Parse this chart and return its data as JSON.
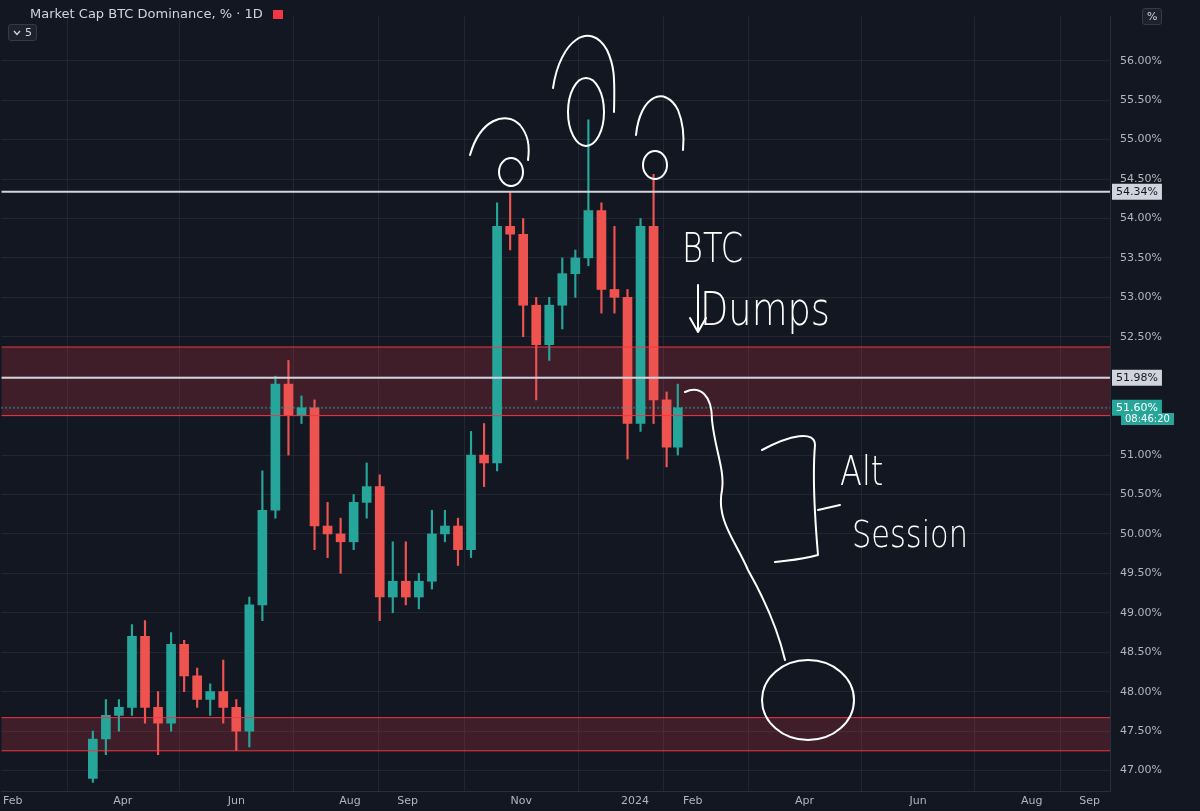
{
  "chart_data": {
    "type": "candlestick",
    "title": "Market Cap BTC Dominance, % · 1D",
    "x": [
      "2023-03-16",
      "2023-03-23",
      "2023-03-30",
      "2023-04-06",
      "2023-04-13",
      "2023-04-20",
      "2023-04-27",
      "2023-05-04",
      "2023-05-11",
      "2023-05-18",
      "2023-05-25",
      "2023-06-01",
      "2023-06-08",
      "2023-06-15",
      "2023-06-22",
      "2023-06-29",
      "2023-07-06",
      "2023-07-13",
      "2023-07-20",
      "2023-07-27",
      "2023-08-03",
      "2023-08-10",
      "2023-08-17",
      "2023-08-24",
      "2023-08-31",
      "2023-09-07",
      "2023-09-14",
      "2023-09-21",
      "2023-09-28",
      "2023-10-05",
      "2023-10-12",
      "2023-10-19",
      "2023-10-26",
      "2023-11-02",
      "2023-11-09",
      "2023-11-16",
      "2023-11-23",
      "2023-11-30",
      "2023-12-07",
      "2023-12-14",
      "2023-12-21",
      "2023-12-28",
      "2024-01-04",
      "2024-01-11",
      "2024-01-18",
      "2024-01-24"
    ],
    "ohlc": [
      [
        46.9,
        47.5,
        46.85,
        47.4
      ],
      [
        47.4,
        47.9,
        47.2,
        47.7
      ],
      [
        47.7,
        47.9,
        47.5,
        47.8
      ],
      [
        47.8,
        48.85,
        47.7,
        48.7
      ],
      [
        48.7,
        48.9,
        47.6,
        47.8
      ],
      [
        47.8,
        48.0,
        47.2,
        47.6
      ],
      [
        47.6,
        48.75,
        47.5,
        48.6
      ],
      [
        48.6,
        48.65,
        48.0,
        48.2
      ],
      [
        48.2,
        48.3,
        47.8,
        47.9
      ],
      [
        47.9,
        48.1,
        47.7,
        48.0
      ],
      [
        48.0,
        48.4,
        47.6,
        47.8
      ],
      [
        47.8,
        47.9,
        47.25,
        47.5
      ],
      [
        47.5,
        49.2,
        47.3,
        49.1
      ],
      [
        49.1,
        50.8,
        48.9,
        50.3
      ],
      [
        50.3,
        52.0,
        50.2,
        51.9
      ],
      [
        51.9,
        52.2,
        51.0,
        51.5
      ],
      [
        51.5,
        51.75,
        51.4,
        51.6
      ],
      [
        51.6,
        51.7,
        49.8,
        50.1
      ],
      [
        50.1,
        50.4,
        49.7,
        50.0
      ],
      [
        50.0,
        50.2,
        49.5,
        49.9
      ],
      [
        49.9,
        50.5,
        49.8,
        50.4
      ],
      [
        50.4,
        50.9,
        50.2,
        50.6
      ],
      [
        50.6,
        50.75,
        48.9,
        49.2
      ],
      [
        49.2,
        49.9,
        49.0,
        49.4
      ],
      [
        49.4,
        49.9,
        49.1,
        49.2
      ],
      [
        49.2,
        49.5,
        49.05,
        49.4
      ],
      [
        49.4,
        50.3,
        49.3,
        50.0
      ],
      [
        50.0,
        50.3,
        49.9,
        50.1
      ],
      [
        50.1,
        50.2,
        49.6,
        49.8
      ],
      [
        49.8,
        51.3,
        49.7,
        51.0
      ],
      [
        51.0,
        51.4,
        50.6,
        50.9
      ],
      [
        50.9,
        54.2,
        50.8,
        53.9
      ],
      [
        53.9,
        54.34,
        53.6,
        53.8
      ],
      [
        53.8,
        54.0,
        52.5,
        52.9
      ],
      [
        52.9,
        53.0,
        51.7,
        52.4
      ],
      [
        52.4,
        53.0,
        52.2,
        52.9
      ],
      [
        52.9,
        53.5,
        52.6,
        53.3
      ],
      [
        53.3,
        53.6,
        53.0,
        53.5
      ],
      [
        53.5,
        55.25,
        53.4,
        54.1
      ],
      [
        54.1,
        54.2,
        52.8,
        53.1
      ],
      [
        53.1,
        53.9,
        52.8,
        53.0
      ],
      [
        53.0,
        53.1,
        50.95,
        51.4
      ],
      [
        51.4,
        54.0,
        51.3,
        53.9
      ],
      [
        53.9,
        54.56,
        51.4,
        51.7
      ],
      [
        51.7,
        51.8,
        50.85,
        51.1
      ],
      [
        51.1,
        51.9,
        51.0,
        51.6
      ]
    ],
    "colors": [
      "#26a69a",
      "#26a69a",
      "#26a69a",
      "#26a69a",
      "#ef5350",
      "#ef5350",
      "#26a69a",
      "#ef5350",
      "#ef5350",
      "#26a69a",
      "#ef5350",
      "#ef5350",
      "#26a69a",
      "#26a69a",
      "#26a69a",
      "#ef5350",
      "#26a69a",
      "#ef5350",
      "#ef5350",
      "#ef5350",
      "#26a69a",
      "#26a69a",
      "#ef5350",
      "#26a69a",
      "#ef5350",
      "#26a69a",
      "#26a69a",
      "#26a69a",
      "#ef5350",
      "#26a69a",
      "#ef5350",
      "#26a69a",
      "#ef5350",
      "#ef5350",
      "#ef5350",
      "#26a69a",
      "#26a69a",
      "#26a69a",
      "#26a69a",
      "#ef5350",
      "#ef5350",
      "#ef5350",
      "#26a69a",
      "#ef5350",
      "#ef5350",
      "#26a69a"
    ],
    "xlim": [
      "2023-01-26",
      "2024-09-12"
    ],
    "xticks": [
      {
        "value": "2023-02-01",
        "label": "Feb"
      },
      {
        "value": "2023-04-01",
        "label": "Apr"
      },
      {
        "value": "2023-06-01",
        "label": "Jun"
      },
      {
        "value": "2023-08-01",
        "label": "Aug"
      },
      {
        "value": "2023-09-01",
        "label": "Sep"
      },
      {
        "value": "2023-11-01",
        "label": "Nov"
      },
      {
        "value": "2024-01-01",
        "label": "2024"
      },
      {
        "value": "2024-02-01",
        "label": "Feb"
      },
      {
        "value": "2024-04-01",
        "label": "Apr"
      },
      {
        "value": "2024-06-01",
        "label": "Jun"
      },
      {
        "value": "2024-08-01",
        "label": "Aug"
      },
      {
        "value": "2024-09-01",
        "label": "Sep"
      }
    ],
    "ylim": [
      46.73,
      56.56
    ],
    "yticks": [
      {
        "value": 47,
        "label": "47.00%"
      },
      {
        "value": 47.5,
        "label": "47.50%"
      },
      {
        "value": 48,
        "label": "48.00%"
      },
      {
        "value": 48.5,
        "label": "48.50%"
      },
      {
        "value": 49,
        "label": "49.00%"
      },
      {
        "value": 49.5,
        "label": "49.50%"
      },
      {
        "value": 50,
        "label": "50.00%"
      },
      {
        "value": 50.5,
        "label": "50.50%"
      },
      {
        "value": 51,
        "label": "51.00%"
      },
      {
        "value": 51.5,
        "label": null
      },
      {
        "value": 52,
        "label": null
      },
      {
        "value": 52.5,
        "label": "52.50%"
      },
      {
        "value": 53,
        "label": "53.00%"
      },
      {
        "value": 53.5,
        "label": "53.50%"
      },
      {
        "value": 54,
        "label": "54.00%"
      },
      {
        "value": 54.5,
        "label": "54.50%"
      },
      {
        "value": 55,
        "label": "55.00%"
      },
      {
        "value": 55.5,
        "label": "55.50%"
      },
      {
        "value": 56,
        "label": "56.00%"
      }
    ],
    "grid": true,
    "legend": false,
    "bands": [
      {
        "axis": "y",
        "from": 51.5,
        "to": 52.37,
        "color": "#f23645"
      },
      {
        "axis": "y",
        "from": 47.25,
        "to": 47.67,
        "color": "#f23645"
      }
    ],
    "ref_lines": [
      {
        "axis": "y",
        "value": 52.37,
        "color": "#f23645",
        "line_style": "solid"
      },
      {
        "axis": "y",
        "value": 51.5,
        "color": "#f23645",
        "line_style": "solid"
      },
      {
        "axis": "y",
        "value": 47.67,
        "color": "#f23645",
        "line_style": "solid"
      },
      {
        "axis": "y",
        "value": 47.25,
        "color": "#f23645",
        "line_style": "solid"
      },
      {
        "axis": "y",
        "value": 54.34,
        "label": "54.34%",
        "color": "#d1d4dc",
        "line_style": "solid"
      },
      {
        "axis": "y",
        "value": 51.98,
        "label": "51.98%",
        "color": "#d1d4dc",
        "line_style": "solid"
      },
      {
        "axis": "y",
        "value": 51.6,
        "label": "51.60%",
        "color": "#26a69a",
        "line_style": "dotted"
      }
    ],
    "annotations": [
      "5",
      "%",
      "BTC",
      "Dumps",
      "Alt",
      "Session",
      "08:46:20"
    ]
  }
}
